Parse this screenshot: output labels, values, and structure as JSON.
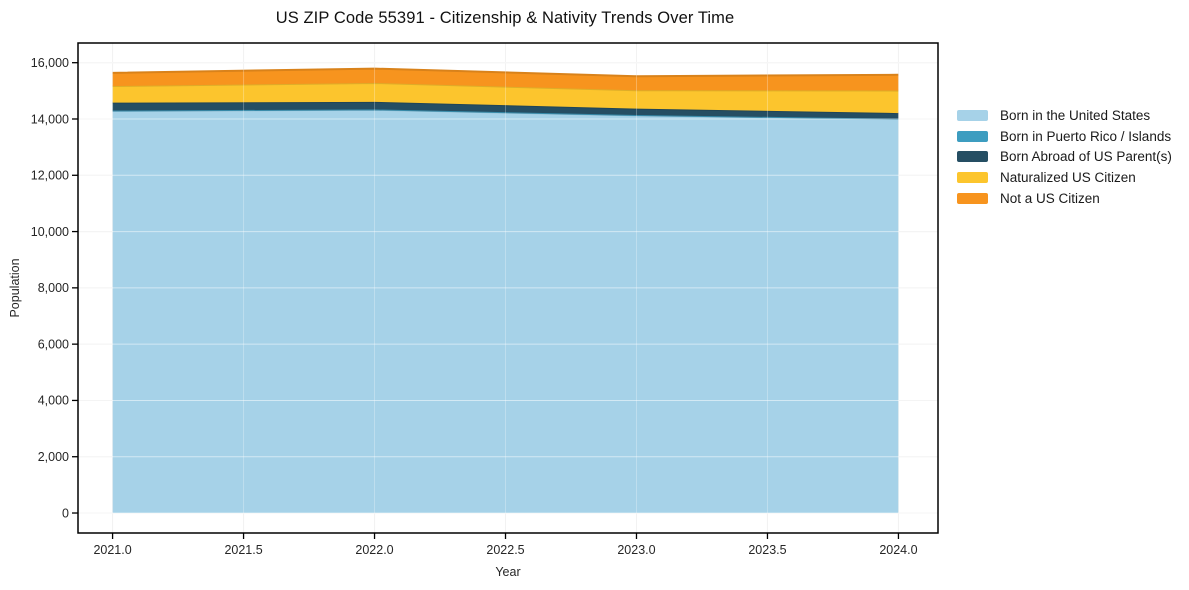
{
  "chart_data": {
    "type": "area",
    "stacked": true,
    "title": "US ZIP Code 55391 - Citizenship & Nativity Trends Over Time",
    "xlabel": "Year",
    "ylabel": "Population",
    "x": [
      2021,
      2022,
      2023,
      2024
    ],
    "series": [
      {
        "name": "Born in the United States",
        "color": "#a6d2e8",
        "values": [
          14290,
          14330,
          14130,
          14000
        ]
      },
      {
        "name": "Born in Puerto Rico / Islands",
        "color": "#3d9dc0",
        "values": [
          10,
          10,
          10,
          10
        ]
      },
      {
        "name": "Born Abroad of US Parent(s)",
        "color": "#254e63",
        "values": [
          280,
          270,
          230,
          200
        ]
      },
      {
        "name": "Naturalized US Citizen",
        "color": "#fcc52d",
        "values": [
          590,
          670,
          650,
          800
        ]
      },
      {
        "name": "Not a US Citizen",
        "color": "#f7941e",
        "values": [
          470,
          510,
          500,
          560
        ]
      }
    ],
    "totals": [
      15640,
      15790,
      15520,
      15570
    ],
    "x_ticks": [
      2021.0,
      2021.5,
      2022.0,
      2022.5,
      2023.0,
      2023.5,
      2024.0
    ],
    "x_tick_labels": [
      "2021.0",
      "2021.5",
      "2022.0",
      "2022.5",
      "2023.0",
      "2023.5",
      "2024.0"
    ],
    "y_ticks": [
      0,
      2000,
      4000,
      6000,
      8000,
      10000,
      12000,
      14000,
      16000
    ],
    "y_tick_labels": [
      "0",
      "2,000",
      "4,000",
      "6,000",
      "8,000",
      "10,000",
      "12,000",
      "14,000",
      "16,000"
    ],
    "xlim": [
      2020.868,
      2024.151
    ],
    "ylim": [
      -710,
      16700
    ],
    "grid": true,
    "legend_position": "right-outside",
    "colors": {
      "frame": "#000000",
      "grid_below": "#e9e9e9",
      "grid_vertical": "#ededed",
      "tick_text": "#262626",
      "background": "#ffffff"
    }
  }
}
